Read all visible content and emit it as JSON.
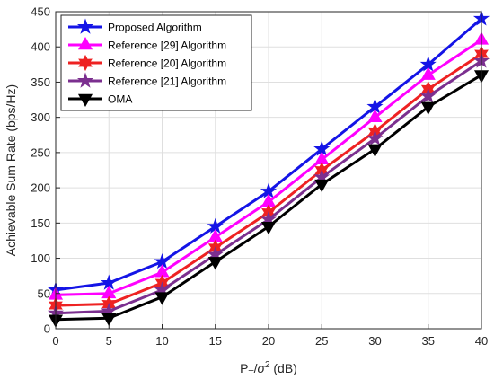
{
  "chart_data": {
    "type": "line",
    "xlabel_main": "P",
    "xlabel_sub": "T",
    "xlabel_slash": "/",
    "xlabel_sigma": "σ",
    "xlabel_sup": "2",
    "xlabel_unit": " (dB)",
    "ylabel": "Achievable Sum Rate (bps/Hz)",
    "x": [
      0,
      5,
      10,
      15,
      20,
      25,
      30,
      35,
      40
    ],
    "xlim": [
      0,
      40
    ],
    "ylim": [
      0,
      450
    ],
    "xticks": [
      0,
      5,
      10,
      15,
      20,
      25,
      30,
      35,
      40
    ],
    "yticks": [
      0,
      50,
      100,
      150,
      200,
      250,
      300,
      350,
      400,
      450
    ],
    "grid": true,
    "legend_position": "top-left",
    "series": [
      {
        "name": "Proposed Algorithm",
        "color": "#1414e6",
        "marker": "star",
        "values": [
          55,
          65,
          95,
          145,
          195,
          255,
          315,
          375,
          440
        ]
      },
      {
        "name": "Reference [29] Algorithm",
        "color": "#ff00ff",
        "marker": "triangle-up",
        "values": [
          48,
          50,
          80,
          130,
          180,
          240,
          300,
          360,
          410
        ]
      },
      {
        "name": "Reference [20] Algorithm",
        "color": "#ee2222",
        "marker": "hexagram",
        "values": [
          33,
          35,
          65,
          115,
          165,
          225,
          280,
          340,
          390
        ]
      },
      {
        "name": "Reference [21] Algorithm",
        "color": "#7b2f8f",
        "marker": "star",
        "values": [
          22,
          25,
          55,
          105,
          155,
          215,
          270,
          330,
          380
        ]
      },
      {
        "name": "OMA",
        "color": "#000000",
        "marker": "triangle-down",
        "values": [
          13,
          15,
          45,
          95,
          145,
          205,
          255,
          315,
          360
        ]
      }
    ]
  }
}
